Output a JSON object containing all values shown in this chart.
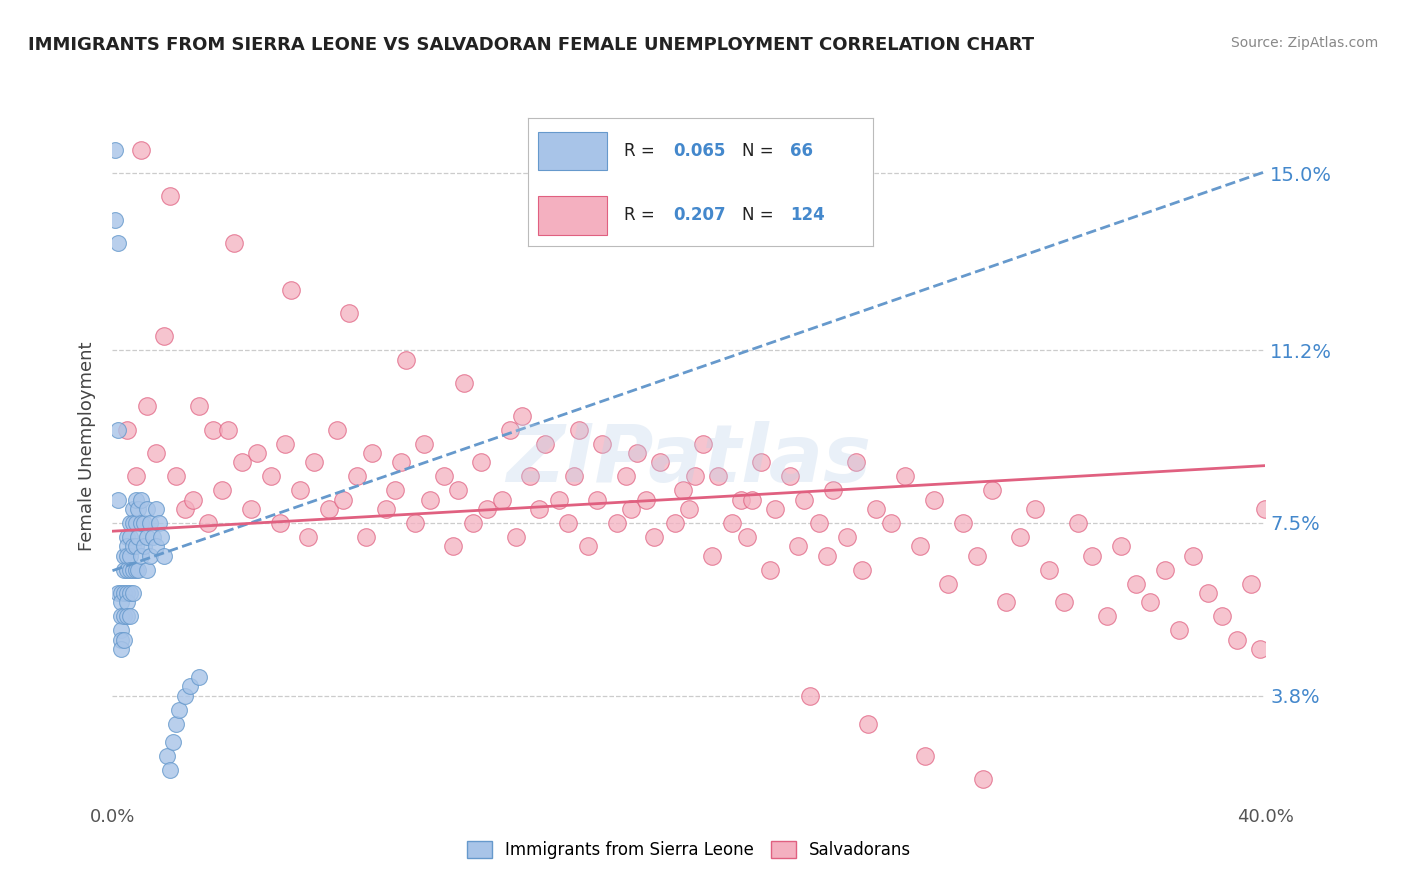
{
  "title": "IMMIGRANTS FROM SIERRA LEONE VS SALVADORAN FEMALE UNEMPLOYMENT CORRELATION CHART",
  "source": "Source: ZipAtlas.com",
  "ylabel": "Female Unemployment",
  "xlim": [
    0.0,
    0.4
  ],
  "ylim": [
    0.015,
    0.168
  ],
  "yticks": [
    0.038,
    0.075,
    0.112,
    0.15
  ],
  "ytick_labels": [
    "3.8%",
    "7.5%",
    "11.2%",
    "15.0%"
  ],
  "xticks": [
    0.0,
    0.4
  ],
  "xtick_labels": [
    "0.0%",
    "40.0%"
  ],
  "blue_R": 0.065,
  "blue_N": 66,
  "pink_R": 0.207,
  "pink_N": 124,
  "blue_color": "#a8c4e8",
  "pink_color": "#f4b0c0",
  "blue_edge": "#6699cc",
  "pink_edge": "#e06080",
  "trend_blue_color": "#6699cc",
  "trend_pink_color": "#e06080",
  "watermark": "ZIPatlas",
  "legend_blue_label": "Immigrants from Sierra Leone",
  "legend_pink_label": "Salvadorans",
  "blue_scatter_x": [
    0.001,
    0.001,
    0.002,
    0.002,
    0.002,
    0.002,
    0.003,
    0.003,
    0.003,
    0.003,
    0.003,
    0.003,
    0.004,
    0.004,
    0.004,
    0.004,
    0.004,
    0.005,
    0.005,
    0.005,
    0.005,
    0.005,
    0.005,
    0.005,
    0.006,
    0.006,
    0.006,
    0.006,
    0.006,
    0.006,
    0.007,
    0.007,
    0.007,
    0.007,
    0.007,
    0.008,
    0.008,
    0.008,
    0.008,
    0.009,
    0.009,
    0.009,
    0.01,
    0.01,
    0.01,
    0.011,
    0.011,
    0.012,
    0.012,
    0.012,
    0.013,
    0.013,
    0.014,
    0.015,
    0.015,
    0.016,
    0.017,
    0.018,
    0.019,
    0.02,
    0.021,
    0.022,
    0.023,
    0.025,
    0.027,
    0.03
  ],
  "blue_scatter_y": [
    0.155,
    0.14,
    0.135,
    0.095,
    0.08,
    0.06,
    0.06,
    0.058,
    0.055,
    0.052,
    0.05,
    0.048,
    0.068,
    0.065,
    0.06,
    0.055,
    0.05,
    0.072,
    0.07,
    0.068,
    0.065,
    0.06,
    0.058,
    0.055,
    0.075,
    0.072,
    0.068,
    0.065,
    0.06,
    0.055,
    0.078,
    0.075,
    0.07,
    0.065,
    0.06,
    0.08,
    0.075,
    0.07,
    0.065,
    0.078,
    0.072,
    0.065,
    0.08,
    0.075,
    0.068,
    0.075,
    0.07,
    0.078,
    0.072,
    0.065,
    0.075,
    0.068,
    0.072,
    0.078,
    0.07,
    0.075,
    0.072,
    0.068,
    0.025,
    0.022,
    0.028,
    0.032,
    0.035,
    0.038,
    0.04,
    0.042
  ],
  "pink_scatter_x": [
    0.005,
    0.008,
    0.012,
    0.015,
    0.018,
    0.022,
    0.025,
    0.028,
    0.03,
    0.033,
    0.035,
    0.038,
    0.04,
    0.045,
    0.048,
    0.05,
    0.055,
    0.058,
    0.06,
    0.065,
    0.068,
    0.07,
    0.075,
    0.078,
    0.08,
    0.085,
    0.088,
    0.09,
    0.095,
    0.098,
    0.1,
    0.105,
    0.108,
    0.11,
    0.115,
    0.118,
    0.12,
    0.125,
    0.128,
    0.13,
    0.135,
    0.138,
    0.14,
    0.145,
    0.148,
    0.15,
    0.155,
    0.158,
    0.16,
    0.165,
    0.168,
    0.17,
    0.175,
    0.178,
    0.18,
    0.185,
    0.188,
    0.19,
    0.195,
    0.198,
    0.2,
    0.205,
    0.208,
    0.21,
    0.215,
    0.218,
    0.22,
    0.225,
    0.228,
    0.23,
    0.235,
    0.238,
    0.24,
    0.245,
    0.248,
    0.25,
    0.255,
    0.258,
    0.26,
    0.265,
    0.27,
    0.275,
    0.28,
    0.285,
    0.29,
    0.295,
    0.3,
    0.305,
    0.31,
    0.315,
    0.32,
    0.325,
    0.33,
    0.335,
    0.34,
    0.345,
    0.35,
    0.355,
    0.36,
    0.365,
    0.37,
    0.375,
    0.38,
    0.385,
    0.39,
    0.395,
    0.398,
    0.4,
    0.01,
    0.02,
    0.042,
    0.062,
    0.082,
    0.102,
    0.122,
    0.142,
    0.162,
    0.182,
    0.202,
    0.222,
    0.242,
    0.262,
    0.282,
    0.302
  ],
  "pink_scatter_y": [
    0.095,
    0.085,
    0.1,
    0.09,
    0.115,
    0.085,
    0.078,
    0.08,
    0.1,
    0.075,
    0.095,
    0.082,
    0.095,
    0.088,
    0.078,
    0.09,
    0.085,
    0.075,
    0.092,
    0.082,
    0.072,
    0.088,
    0.078,
    0.095,
    0.08,
    0.085,
    0.072,
    0.09,
    0.078,
    0.082,
    0.088,
    0.075,
    0.092,
    0.08,
    0.085,
    0.07,
    0.082,
    0.075,
    0.088,
    0.078,
    0.08,
    0.095,
    0.072,
    0.085,
    0.078,
    0.092,
    0.08,
    0.075,
    0.085,
    0.07,
    0.08,
    0.092,
    0.075,
    0.085,
    0.078,
    0.08,
    0.072,
    0.088,
    0.075,
    0.082,
    0.078,
    0.092,
    0.068,
    0.085,
    0.075,
    0.08,
    0.072,
    0.088,
    0.065,
    0.078,
    0.085,
    0.07,
    0.08,
    0.075,
    0.068,
    0.082,
    0.072,
    0.088,
    0.065,
    0.078,
    0.075,
    0.085,
    0.07,
    0.08,
    0.062,
    0.075,
    0.068,
    0.082,
    0.058,
    0.072,
    0.078,
    0.065,
    0.058,
    0.075,
    0.068,
    0.055,
    0.07,
    0.062,
    0.058,
    0.065,
    0.052,
    0.068,
    0.06,
    0.055,
    0.05,
    0.062,
    0.048,
    0.078,
    0.155,
    0.145,
    0.135,
    0.125,
    0.12,
    0.11,
    0.105,
    0.098,
    0.095,
    0.09,
    0.085,
    0.08,
    0.038,
    0.032,
    0.025,
    0.02
  ]
}
